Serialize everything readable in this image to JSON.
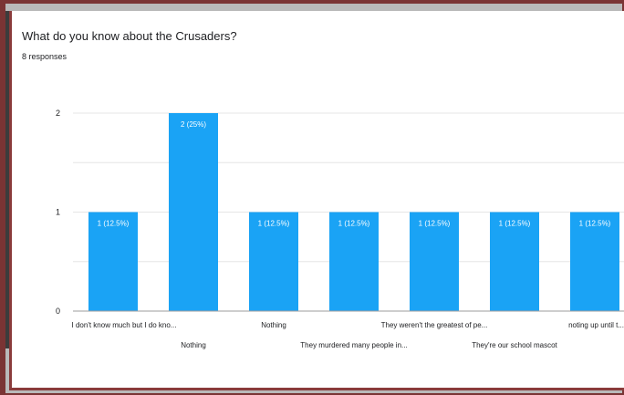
{
  "form": {
    "question": "What do you know about the Crusaders?",
    "responses": "8 responses"
  },
  "colors": {
    "bar": "#1aa3f5",
    "grid": "#e6e6e6",
    "axis": "#9e9e9e",
    "text": "#202124",
    "label_text": "#ffffff"
  },
  "chart_data": {
    "type": "bar",
    "categories": [
      "I don't know much but I do kno...",
      "Nothing",
      "Nothing",
      "They murdered many people in...",
      "They weren't the greatest of pe...",
      "They're our school mascot",
      "noting up until t..."
    ],
    "values": [
      1,
      2,
      1,
      1,
      1,
      1,
      1
    ],
    "data_labels": [
      "1 (12.5%)",
      "2 (25%)",
      "1 (12.5%)",
      "1 (12.5%)",
      "1 (12.5%)",
      "1 (12.5%)",
      "1 (12.5%)"
    ],
    "y_ticks": [
      "0",
      "1",
      "2"
    ],
    "ylim": [
      0,
      2
    ],
    "grid": true,
    "title": "What do you know about the Crusaders?",
    "xlabel": "",
    "ylabel": ""
  }
}
